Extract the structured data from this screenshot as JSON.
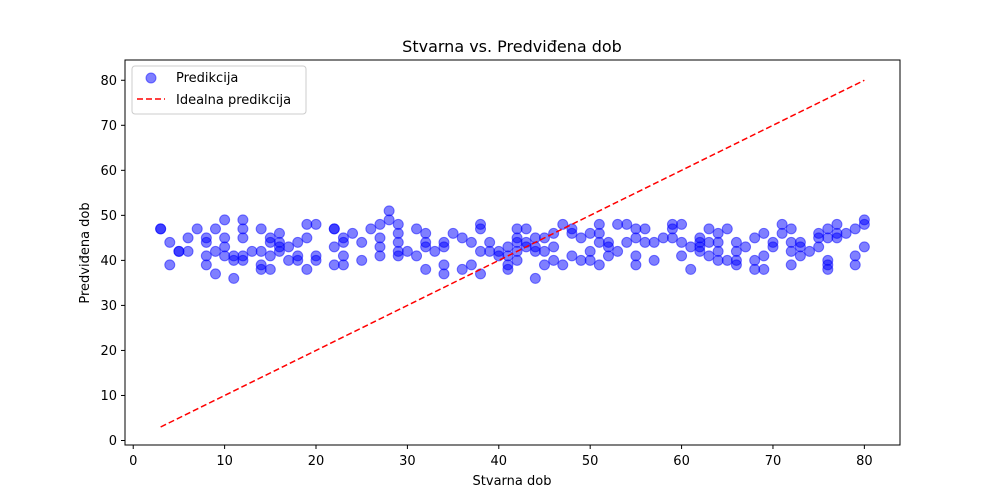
{
  "chart_data": {
    "type": "scatter",
    "title": "Stvarna vs. Predviđena dob",
    "xlabel": "Stvarna dob",
    "ylabel": "Predviđena dob",
    "xlim": [
      -0.9,
      83.9
    ],
    "ylim": [
      -1.0,
      84.5
    ],
    "xticks": [
      0,
      10,
      20,
      30,
      40,
      50,
      60,
      70,
      80
    ],
    "yticks": [
      0,
      10,
      20,
      30,
      40,
      50,
      60,
      70,
      80
    ],
    "grid": false,
    "legend_position": "top-left",
    "series": [
      {
        "name": "Predikcija",
        "kind": "scatter",
        "color": "#0000ff",
        "alpha": 0.5,
        "points": [
          [
            3,
            47
          ],
          [
            3,
            47
          ],
          [
            4,
            44
          ],
          [
            4,
            39
          ],
          [
            5,
            42
          ],
          [
            5,
            42
          ],
          [
            6,
            45
          ],
          [
            6,
            42
          ],
          [
            7,
            47
          ],
          [
            8,
            44
          ],
          [
            8,
            41
          ],
          [
            8,
            39
          ],
          [
            8,
            45
          ],
          [
            9,
            47
          ],
          [
            9,
            42
          ],
          [
            9,
            37
          ],
          [
            10,
            49
          ],
          [
            10,
            45
          ],
          [
            10,
            43
          ],
          [
            10,
            41
          ],
          [
            11,
            41
          ],
          [
            11,
            40
          ],
          [
            11,
            36
          ],
          [
            12,
            49
          ],
          [
            12,
            47
          ],
          [
            12,
            45
          ],
          [
            12,
            41
          ],
          [
            12,
            40
          ],
          [
            13,
            42
          ],
          [
            14,
            47
          ],
          [
            14,
            42
          ],
          [
            14,
            39
          ],
          [
            14,
            38
          ],
          [
            15,
            45
          ],
          [
            15,
            44
          ],
          [
            15,
            41
          ],
          [
            15,
            38
          ],
          [
            16,
            46
          ],
          [
            16,
            44
          ],
          [
            16,
            43
          ],
          [
            16,
            42
          ],
          [
            17,
            43
          ],
          [
            17,
            40
          ],
          [
            18,
            44
          ],
          [
            18,
            41
          ],
          [
            18,
            40
          ],
          [
            19,
            48
          ],
          [
            19,
            45
          ],
          [
            19,
            38
          ],
          [
            20,
            48
          ],
          [
            20,
            41
          ],
          [
            20,
            40
          ],
          [
            22,
            47
          ],
          [
            22,
            47
          ],
          [
            22,
            43
          ],
          [
            22,
            39
          ],
          [
            23,
            45
          ],
          [
            23,
            44
          ],
          [
            23,
            41
          ],
          [
            23,
            39
          ],
          [
            24,
            46
          ],
          [
            25,
            44
          ],
          [
            25,
            40
          ],
          [
            26,
            47
          ],
          [
            27,
            48
          ],
          [
            27,
            45
          ],
          [
            27,
            43
          ],
          [
            27,
            41
          ],
          [
            28,
            51
          ],
          [
            28,
            49
          ],
          [
            29,
            48
          ],
          [
            29,
            46
          ],
          [
            29,
            44
          ],
          [
            29,
            42
          ],
          [
            29,
            41
          ],
          [
            30,
            42
          ],
          [
            31,
            47
          ],
          [
            31,
            41
          ],
          [
            32,
            46
          ],
          [
            32,
            44
          ],
          [
            32,
            43
          ],
          [
            32,
            38
          ],
          [
            33,
            42
          ],
          [
            34,
            44
          ],
          [
            34,
            43
          ],
          [
            34,
            39
          ],
          [
            34,
            37
          ],
          [
            35,
            46
          ],
          [
            36,
            45
          ],
          [
            36,
            38
          ],
          [
            37,
            44
          ],
          [
            37,
            39
          ],
          [
            38,
            48
          ],
          [
            38,
            47
          ],
          [
            38,
            42
          ],
          [
            38,
            37
          ],
          [
            39,
            44
          ],
          [
            39,
            42
          ],
          [
            40,
            42
          ],
          [
            40,
            41
          ],
          [
            41,
            43
          ],
          [
            41,
            41
          ],
          [
            41,
            39
          ],
          [
            41,
            38
          ],
          [
            42,
            47
          ],
          [
            42,
            45
          ],
          [
            42,
            44
          ],
          [
            42,
            42
          ],
          [
            42,
            40
          ],
          [
            43,
            47
          ],
          [
            43,
            44
          ],
          [
            43,
            43
          ],
          [
            44,
            45
          ],
          [
            44,
            43
          ],
          [
            44,
            42
          ],
          [
            44,
            36
          ],
          [
            45,
            45
          ],
          [
            45,
            42
          ],
          [
            45,
            39
          ],
          [
            46,
            46
          ],
          [
            46,
            43
          ],
          [
            46,
            40
          ],
          [
            47,
            48
          ],
          [
            47,
            39
          ],
          [
            48,
            47
          ],
          [
            48,
            46
          ],
          [
            48,
            41
          ],
          [
            49,
            45
          ],
          [
            49,
            40
          ],
          [
            50,
            46
          ],
          [
            50,
            42
          ],
          [
            50,
            40
          ],
          [
            51,
            48
          ],
          [
            51,
            46
          ],
          [
            51,
            44
          ],
          [
            51,
            39
          ],
          [
            52,
            44
          ],
          [
            52,
            43
          ],
          [
            52,
            41
          ],
          [
            53,
            48
          ],
          [
            53,
            42
          ],
          [
            54,
            48
          ],
          [
            54,
            44
          ],
          [
            55,
            47
          ],
          [
            55,
            45
          ],
          [
            55,
            41
          ],
          [
            55,
            39
          ],
          [
            56,
            47
          ],
          [
            56,
            44
          ],
          [
            57,
            44
          ],
          [
            57,
            40
          ],
          [
            58,
            45
          ],
          [
            59,
            48
          ],
          [
            59,
            47
          ],
          [
            59,
            45
          ],
          [
            60,
            48
          ],
          [
            60,
            44
          ],
          [
            60,
            41
          ],
          [
            61,
            43
          ],
          [
            61,
            38
          ],
          [
            62,
            45
          ],
          [
            62,
            44
          ],
          [
            62,
            43
          ],
          [
            62,
            42
          ],
          [
            63,
            47
          ],
          [
            63,
            44
          ],
          [
            63,
            41
          ],
          [
            64,
            46
          ],
          [
            64,
            44
          ],
          [
            64,
            42
          ],
          [
            64,
            40
          ],
          [
            65,
            47
          ],
          [
            65,
            40
          ],
          [
            66,
            44
          ],
          [
            66,
            42
          ],
          [
            66,
            40
          ],
          [
            66,
            39
          ],
          [
            67,
            43
          ],
          [
            68,
            45
          ],
          [
            68,
            40
          ],
          [
            68,
            38
          ],
          [
            69,
            46
          ],
          [
            69,
            41
          ],
          [
            69,
            38
          ],
          [
            70,
            44
          ],
          [
            70,
            43
          ],
          [
            71,
            48
          ],
          [
            71,
            46
          ],
          [
            72,
            47
          ],
          [
            72,
            44
          ],
          [
            72,
            42
          ],
          [
            72,
            39
          ],
          [
            73,
            44
          ],
          [
            73,
            43
          ],
          [
            73,
            41
          ],
          [
            74,
            42
          ],
          [
            75,
            46
          ],
          [
            75,
            45
          ],
          [
            75,
            43
          ],
          [
            76,
            47
          ],
          [
            76,
            45
          ],
          [
            76,
            40
          ],
          [
            76,
            39
          ],
          [
            76,
            38
          ],
          [
            77,
            48
          ],
          [
            77,
            46
          ],
          [
            77,
            45
          ],
          [
            78,
            46
          ],
          [
            79,
            47
          ],
          [
            79,
            41
          ],
          [
            79,
            39
          ],
          [
            80,
            49
          ],
          [
            80,
            48
          ],
          [
            80,
            43
          ]
        ]
      },
      {
        "name": "Idealna predikcija",
        "kind": "line",
        "color": "#ff0000",
        "dash": "dashed",
        "points": [
          [
            3,
            3
          ],
          [
            80,
            80
          ]
        ]
      }
    ]
  }
}
